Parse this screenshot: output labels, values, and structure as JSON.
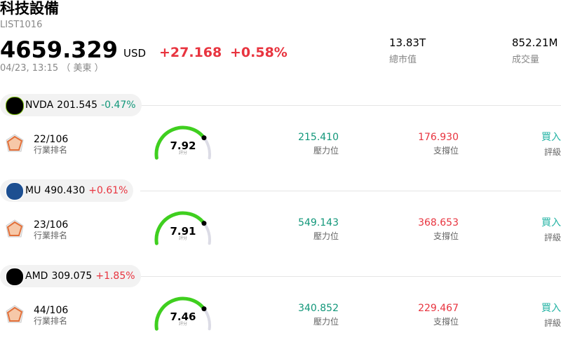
{
  "header": {
    "title": "科技設備",
    "code": "LIST1016",
    "price": "4659.329",
    "currency": "USD",
    "change": "+27.168",
    "change_pct": "+0.58%",
    "time": "04/23, 13:15 （ 美東 ）",
    "market_cap": "13.83T",
    "market_cap_label": "總市值",
    "volume": "852.21M",
    "volume_label": "成交量"
  },
  "stocks": [
    {
      "ticker": "NVDA",
      "price": "201.545",
      "change_pct": "-0.47%",
      "rank": "22/106",
      "rank_label": "行業排名",
      "score": "7.92",
      "score_label": "評分",
      "resistance": "215.410",
      "resistance_label": "壓力位",
      "support": "176.930",
      "support_label": "支撐位",
      "rating": "買入",
      "rating_label": "評級"
    },
    {
      "ticker": "MU",
      "price": "490.430",
      "change_pct": "+0.61%",
      "rank": "23/106",
      "rank_label": "行業排名",
      "score": "7.91",
      "score_label": "評分",
      "resistance": "549.143",
      "resistance_label": "壓力位",
      "support": "368.653",
      "support_label": "支撐位",
      "rating": "買入",
      "rating_label": "評級"
    },
    {
      "ticker": "AMD",
      "price": "309.075",
      "change_pct": "+1.85%",
      "rank": "44/106",
      "rank_label": "行業排名",
      "score": "7.46",
      "score_label": "評分",
      "resistance": "340.852",
      "resistance_label": "壓力位",
      "support": "229.467",
      "support_label": "支撐位",
      "rating": "買入",
      "rating_label": "評級"
    }
  ]
}
